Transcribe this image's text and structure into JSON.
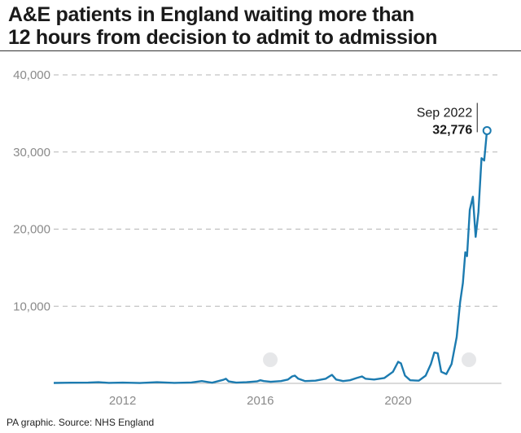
{
  "header": {
    "title_line1": "A&E patients in England waiting more than",
    "title_line2": "12 hours from decision to admit to admission"
  },
  "footer": {
    "source": "PA graphic. Source: NHS England"
  },
  "annotation": {
    "label": "Sep 2022",
    "value": "32,776"
  },
  "colors": {
    "line": "#1c7bb0",
    "grid": "#b5b5b5",
    "axis_text": "#8a8a8a",
    "title": "#1a1a1a"
  },
  "chart_data": {
    "type": "line",
    "title": "A&E patients in England waiting more than 12 hours from decision to admit to admission",
    "xlabel": "",
    "ylabel": "",
    "x_tick_labels": [
      "2012",
      "2016",
      "2020"
    ],
    "y_tick_labels": [
      "10,000",
      "20,000",
      "30,000",
      "40,000"
    ],
    "y_ticks": [
      10000,
      20000,
      30000,
      40000
    ],
    "x_ticks": [
      2012,
      2016,
      2020
    ],
    "ylim": [
      0,
      40000
    ],
    "xlim": [
      2010.0,
      2023.0
    ],
    "grid": "horizontal dashed",
    "series": [
      {
        "name": "",
        "points": [
          {
            "x": 2010.0,
            "y": 50
          },
          {
            "x": 2010.5,
            "y": 80
          },
          {
            "x": 2011.0,
            "y": 90
          },
          {
            "x": 2011.3,
            "y": 150
          },
          {
            "x": 2011.6,
            "y": 60
          },
          {
            "x": 2012.0,
            "y": 100
          },
          {
            "x": 2012.5,
            "y": 40
          },
          {
            "x": 2013.0,
            "y": 150
          },
          {
            "x": 2013.5,
            "y": 60
          },
          {
            "x": 2014.0,
            "y": 120
          },
          {
            "x": 2014.3,
            "y": 300
          },
          {
            "x": 2014.6,
            "y": 80
          },
          {
            "x": 2014.92,
            "y": 450
          },
          {
            "x": 2015.0,
            "y": 600
          },
          {
            "x": 2015.08,
            "y": 250
          },
          {
            "x": 2015.3,
            "y": 100
          },
          {
            "x": 2015.6,
            "y": 150
          },
          {
            "x": 2015.9,
            "y": 250
          },
          {
            "x": 2016.0,
            "y": 400
          },
          {
            "x": 2016.1,
            "y": 300
          },
          {
            "x": 2016.3,
            "y": 200
          },
          {
            "x": 2016.6,
            "y": 300
          },
          {
            "x": 2016.8,
            "y": 500
          },
          {
            "x": 2016.92,
            "y": 900
          },
          {
            "x": 2017.0,
            "y": 1000
          },
          {
            "x": 2017.1,
            "y": 600
          },
          {
            "x": 2017.3,
            "y": 300
          },
          {
            "x": 2017.6,
            "y": 350
          },
          {
            "x": 2017.9,
            "y": 600
          },
          {
            "x": 2018.0,
            "y": 900
          },
          {
            "x": 2018.08,
            "y": 1100
          },
          {
            "x": 2018.2,
            "y": 500
          },
          {
            "x": 2018.4,
            "y": 300
          },
          {
            "x": 2018.6,
            "y": 400
          },
          {
            "x": 2018.8,
            "y": 700
          },
          {
            "x": 2018.95,
            "y": 900
          },
          {
            "x": 2019.05,
            "y": 600
          },
          {
            "x": 2019.3,
            "y": 500
          },
          {
            "x": 2019.6,
            "y": 700
          },
          {
            "x": 2019.85,
            "y": 1500
          },
          {
            "x": 2020.0,
            "y": 2800
          },
          {
            "x": 2020.08,
            "y": 2600
          },
          {
            "x": 2020.2,
            "y": 1000
          },
          {
            "x": 2020.35,
            "y": 400
          },
          {
            "x": 2020.6,
            "y": 350
          },
          {
            "x": 2020.8,
            "y": 1000
          },
          {
            "x": 2020.95,
            "y": 2500
          },
          {
            "x": 2021.05,
            "y": 4000
          },
          {
            "x": 2021.15,
            "y": 3900
          },
          {
            "x": 2021.25,
            "y": 1500
          },
          {
            "x": 2021.4,
            "y": 1200
          },
          {
            "x": 2021.55,
            "y": 2500
          },
          {
            "x": 2021.7,
            "y": 6000
          },
          {
            "x": 2021.8,
            "y": 10500
          },
          {
            "x": 2021.88,
            "y": 13000
          },
          {
            "x": 2021.95,
            "y": 17000
          },
          {
            "x": 2022.0,
            "y": 16500
          },
          {
            "x": 2022.08,
            "y": 22500
          },
          {
            "x": 2022.17,
            "y": 24200
          },
          {
            "x": 2022.25,
            "y": 19000
          },
          {
            "x": 2022.33,
            "y": 22200
          },
          {
            "x": 2022.42,
            "y": 29200
          },
          {
            "x": 2022.5,
            "y": 28900
          },
          {
            "x": 2022.58,
            "y": 32776
          }
        ]
      }
    ],
    "annotations": [
      {
        "x": 2022.58,
        "y": 32776,
        "label": "Sep 2022",
        "value": "32,776"
      }
    ]
  }
}
